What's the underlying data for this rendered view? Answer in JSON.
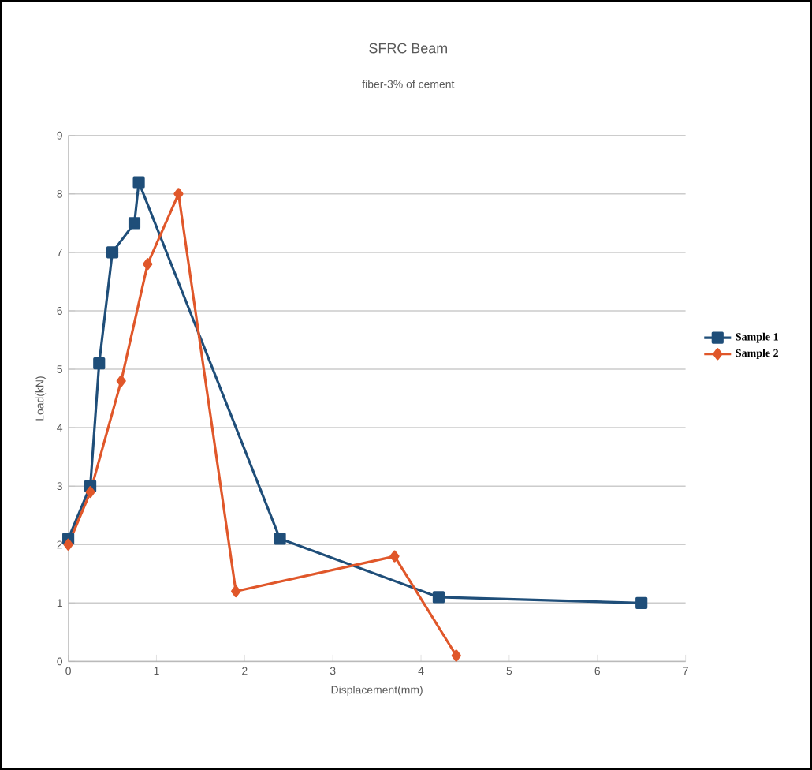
{
  "chart_data": {
    "type": "line",
    "title": "SFRC Beam",
    "subtitle": "fiber-3% of cement",
    "xlabel": "Displacement(mm)",
    "ylabel": "Load(kN)",
    "xlim": [
      0,
      7
    ],
    "xticks": [
      0,
      1,
      2,
      3,
      4,
      5,
      6,
      7
    ],
    "ylim": [
      0,
      9
    ],
    "yticks": [
      0,
      1,
      2,
      3,
      4,
      5,
      6,
      7,
      8,
      9
    ],
    "grid": "y",
    "legend": "right",
    "series": [
      {
        "name": "Sample 1",
        "color": "#1f4e79",
        "marker": "square",
        "x": [
          0,
          0.25,
          0.35,
          0.5,
          0.75,
          0.8,
          2.4,
          4.2,
          6.5
        ],
        "values": [
          2.1,
          3.0,
          5.1,
          7.0,
          7.5,
          8.2,
          2.1,
          1.1,
          1.0
        ]
      },
      {
        "name": "Sample 2",
        "color": "#e0572a",
        "marker": "diamond",
        "x": [
          0,
          0.25,
          0.6,
          0.9,
          1.25,
          1.9,
          3.7,
          4.4
        ],
        "values": [
          2.0,
          2.9,
          4.8,
          6.8,
          8.0,
          1.2,
          1.8,
          0.1
        ]
      }
    ]
  }
}
